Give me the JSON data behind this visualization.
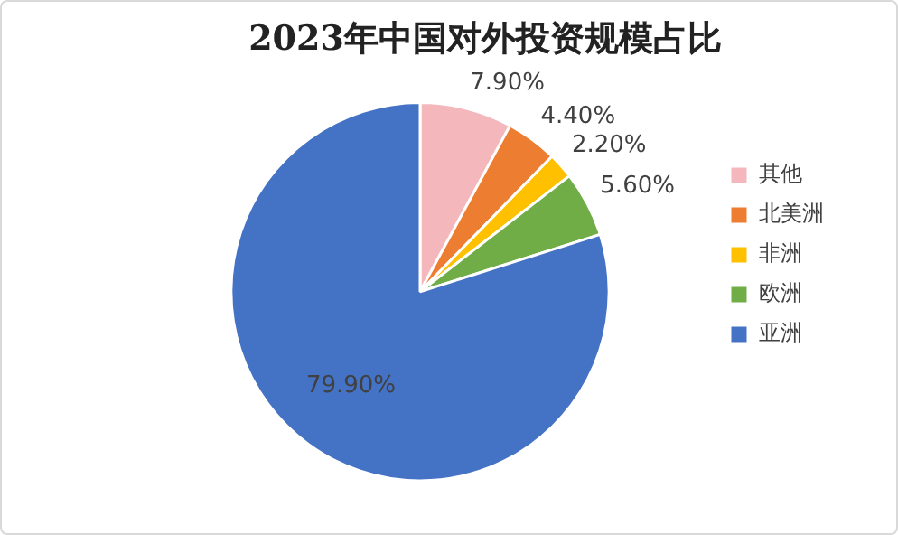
{
  "chart_data": {
    "type": "pie",
    "title": "2023年中国对外投资规模占比",
    "categories": [
      "其他",
      "北美洲",
      "非洲",
      "欧洲",
      "亚洲"
    ],
    "values": [
      7.9,
      4.4,
      2.2,
      5.6,
      79.9
    ],
    "value_labels": [
      "7.90%",
      "4.40%",
      "2.20%",
      "5.60%",
      "79.90%"
    ],
    "colors": [
      "#f4b8bc",
      "#ed7d31",
      "#ffc000",
      "#70ad47",
      "#4472c4"
    ],
    "legend": "right"
  }
}
